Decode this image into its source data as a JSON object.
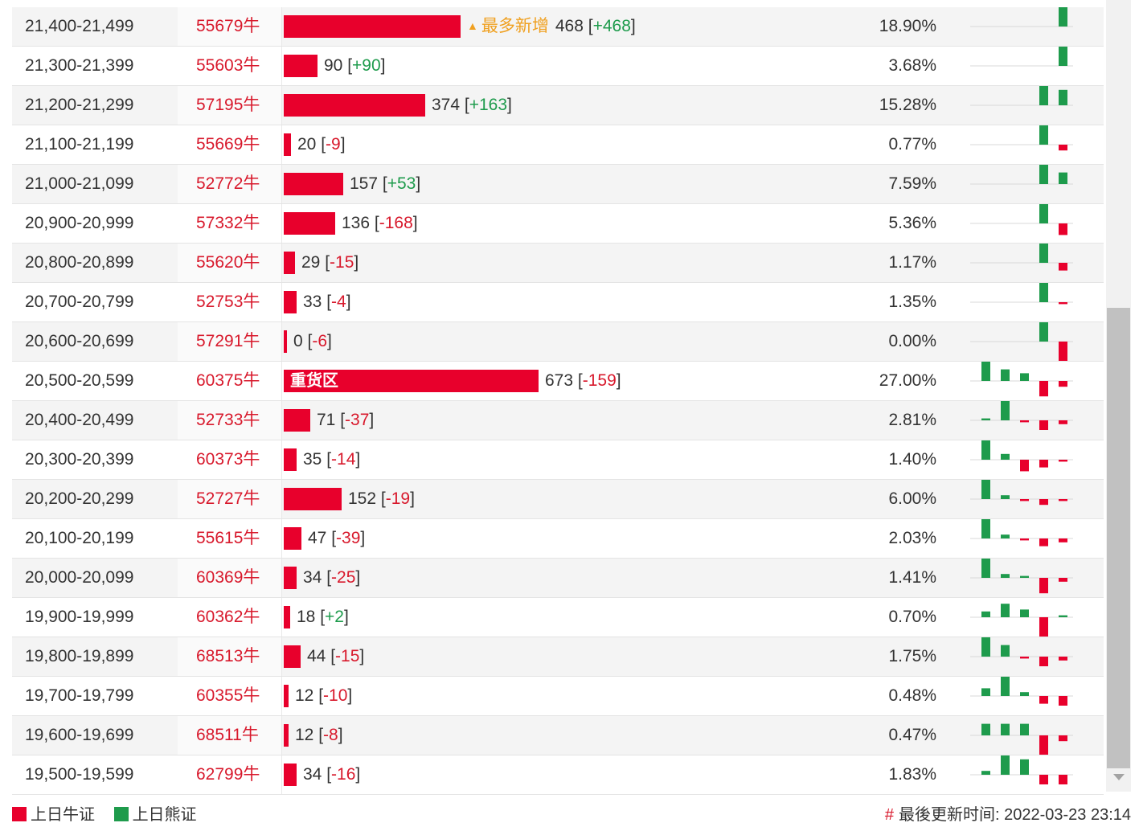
{
  "colors": {
    "bull": "#e8002c",
    "bear": "#1e9b4c",
    "code": "#d8192c",
    "tag": "#f0a020"
  },
  "table": {
    "rows": [
      {
        "range": "21,400-21,499",
        "code": "55679牛",
        "count": 468,
        "count_text": "468",
        "change": "+468",
        "pct": "18.90%",
        "tag": "最多新增",
        "spark": [
          0,
          0,
          0,
          0,
          5
        ]
      },
      {
        "range": "21,300-21,399",
        "code": "55603牛",
        "count": 90,
        "count_text": "90",
        "change": "+90",
        "pct": "3.68%",
        "spark": [
          0,
          0,
          0,
          0,
          5
        ]
      },
      {
        "range": "21,200-21,299",
        "code": "57195牛",
        "count": 374,
        "count_text": "374",
        "change": "+163",
        "pct": "15.28%",
        "spark": [
          0,
          0,
          0,
          5,
          4
        ]
      },
      {
        "range": "21,100-21,199",
        "code": "55669牛",
        "count": 20,
        "count_text": "20",
        "change": "-9",
        "pct": "0.77%",
        "spark": [
          0,
          0,
          0,
          5,
          -1.5
        ]
      },
      {
        "range": "21,000-21,099",
        "code": "52772牛",
        "count": 157,
        "count_text": "157",
        "change": "+53",
        "pct": "7.59%",
        "spark": [
          0,
          0,
          0,
          5,
          3
        ]
      },
      {
        "range": "20,900-20,999",
        "code": "57332牛",
        "count": 136,
        "count_text": "136",
        "change": "-168",
        "pct": "5.36%",
        "spark": [
          0,
          0,
          0,
          5,
          -3
        ]
      },
      {
        "range": "20,800-20,899",
        "code": "55620牛",
        "count": 29,
        "count_text": "29",
        "change": "-15",
        "pct": "1.17%",
        "spark": [
          0,
          0,
          0,
          5,
          -2
        ]
      },
      {
        "range": "20,700-20,799",
        "code": "52753牛",
        "count": 33,
        "count_text": "33",
        "change": "-4",
        "pct": "1.35%",
        "spark": [
          0,
          0,
          0,
          5,
          -0.5
        ]
      },
      {
        "range": "20,600-20,699",
        "code": "57291牛",
        "count": 0,
        "count_text": "0",
        "change": "-6",
        "pct": "0.00%",
        "spark": [
          0,
          0,
          0,
          5,
          -5
        ]
      },
      {
        "range": "20,500-20,599",
        "code": "60375牛",
        "count": 673,
        "count_text": "673",
        "change": "-159",
        "pct": "27.00%",
        "label": "重货区",
        "spark": [
          5,
          3,
          2,
          -4,
          -1.5
        ]
      },
      {
        "range": "20,400-20,499",
        "code": "52733牛",
        "count": 71,
        "count_text": "71",
        "change": "-37",
        "pct": "2.81%",
        "spark": [
          0.5,
          5,
          -0.5,
          -2.5,
          -1
        ]
      },
      {
        "range": "20,300-20,399",
        "code": "60373牛",
        "count": 35,
        "count_text": "35",
        "change": "-14",
        "pct": "1.40%",
        "spark": [
          5,
          1.5,
          -3,
          -2,
          -0.5
        ]
      },
      {
        "range": "20,200-20,299",
        "code": "52727牛",
        "count": 152,
        "count_text": "152",
        "change": "-19",
        "pct": "6.00%",
        "spark": [
          5,
          1,
          -0.5,
          -1.5,
          -0.5
        ]
      },
      {
        "range": "20,100-20,199",
        "code": "55615牛",
        "count": 47,
        "count_text": "47",
        "change": "-39",
        "pct": "2.03%",
        "spark": [
          5,
          1,
          -0.5,
          -2,
          -1
        ]
      },
      {
        "range": "20,000-20,099",
        "code": "60369牛",
        "count": 34,
        "count_text": "34",
        "change": "-25",
        "pct": "1.41%",
        "spark": [
          5,
          1,
          0.5,
          -4,
          -1
        ]
      },
      {
        "range": "19,900-19,999",
        "code": "60362牛",
        "count": 18,
        "count_text": "18",
        "change": "+2",
        "pct": "0.70%",
        "spark": [
          1.5,
          3.5,
          2,
          -5,
          0.5
        ]
      },
      {
        "range": "19,800-19,899",
        "code": "68513牛",
        "count": 44,
        "count_text": "44",
        "change": "-15",
        "pct": "1.75%",
        "spark": [
          5,
          3,
          -0.5,
          -2.5,
          -1
        ]
      },
      {
        "range": "19,700-19,799",
        "code": "60355牛",
        "count": 12,
        "count_text": "12",
        "change": "-10",
        "pct": "0.48%",
        "spark": [
          2,
          5,
          1,
          -2,
          -2.5
        ]
      },
      {
        "range": "19,600-19,699",
        "code": "68511牛",
        "count": 12,
        "count_text": "12",
        "change": "-8",
        "pct": "0.47%",
        "spark": [
          3,
          3,
          3,
          -5,
          -1.5
        ]
      },
      {
        "range": "19,500-19,599",
        "code": "62799牛",
        "count": 34,
        "count_text": "34",
        "change": "-16",
        "pct": "1.83%",
        "spark": [
          1,
          5,
          4,
          -2.5,
          -2.5
        ]
      }
    ]
  },
  "legend": {
    "bull_label": "上日牛证",
    "bear_label": "上日熊证"
  },
  "footer": {
    "update_label": "最後更新时间: 2022-03-23 23:14",
    "hash": "#"
  }
}
